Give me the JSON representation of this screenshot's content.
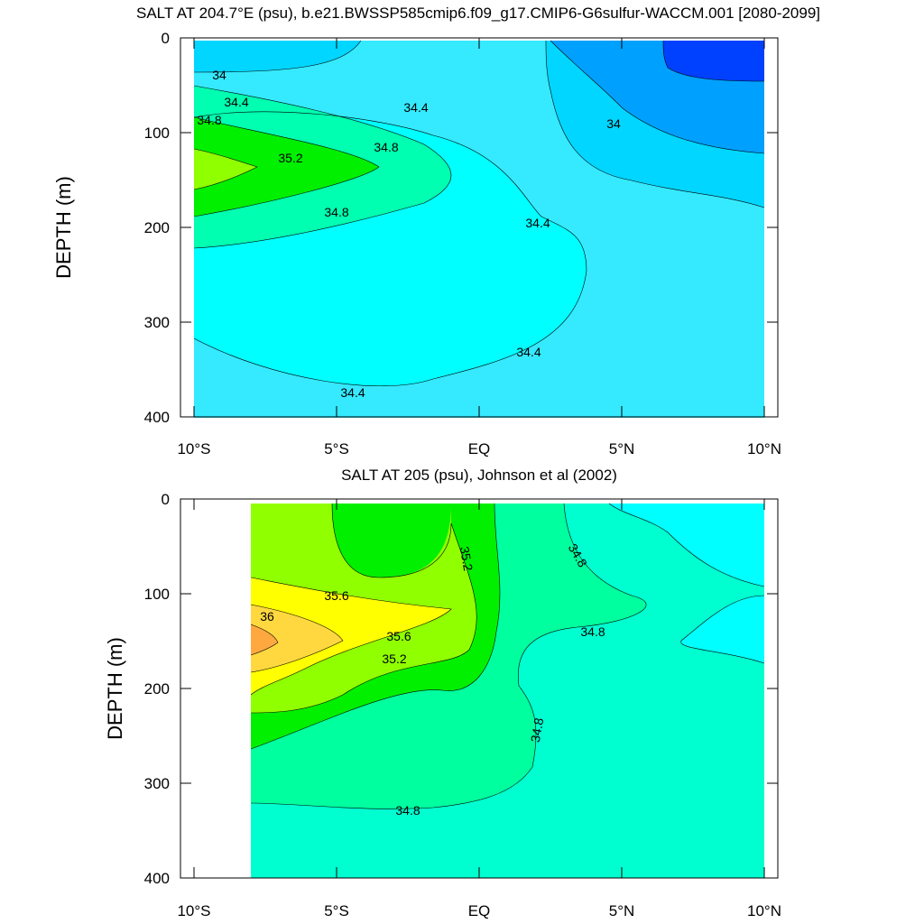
{
  "chart_data": [
    {
      "type": "contour",
      "title": "SALT AT 204.7°E (psu), b.e21.BWSSP585cmip6.f09_g17.CMIP6-G6sulfur-WACCM.001 [2080-2099]",
      "ylabel": "DEPTH (m)",
      "xlabel": "",
      "x_ticks": [
        "10°S",
        "5°S",
        "EQ",
        "5°N",
        "10°N"
      ],
      "xlim": [
        -10,
        10
      ],
      "y_ticks": [
        "0",
        "100",
        "200",
        "300",
        "400"
      ],
      "ylim": [
        0,
        400
      ],
      "y_reversed": true,
      "contour_levels": [
        33.6,
        34.0,
        34.4,
        34.8,
        35.2,
        35.6
      ],
      "contour_labels": [
        "34",
        "34.4",
        "34.8",
        "34.8",
        "35.2",
        "34.4",
        "34",
        "34.8",
        "34.4",
        "34.4",
        "34.4"
      ],
      "colors": {
        "below_33.6": "#0040ff",
        "33.6_34.0": "#00a0ff",
        "34.0_34.4": "#00d6ff",
        "34.4_34.8": "#35e9ff",
        "34.4_34.8_core": "#00ffff",
        "34.8_35.2": "#00ffb0",
        "35.2_35.6": "#00f000",
        "35.6_36.0": "#90ff00"
      }
    },
    {
      "type": "contour",
      "title": "SALT AT 205 (psu), Johnson et al (2002)",
      "ylabel": "DEPTH (m)",
      "xlabel": "",
      "x_ticks": [
        "10°S",
        "5°S",
        "EQ",
        "5°N",
        "10°N"
      ],
      "xlim": [
        -10,
        10
      ],
      "y_ticks": [
        "0",
        "100",
        "200",
        "300",
        "400"
      ],
      "ylim": [
        0,
        400
      ],
      "y_reversed": true,
      "data_x_range": [
        -8,
        10
      ],
      "contour_levels": [
        34.4,
        34.8,
        35.2,
        35.6,
        36.0,
        36.4
      ],
      "contour_labels": [
        "35.2",
        "35.6",
        "36",
        "35.6",
        "35.2",
        "34.8",
        "34.8",
        "34.8",
        "34.8"
      ],
      "colors": {
        "34.4_34.8": "#00ffff",
        "34.8_35.2": "#00ffd0",
        "35.2_35.6": "#00ff9e",
        "35.6_36.0": "#00f000",
        "36.0_36.4": "#90ff00",
        "36.4_36.8": "#ffff00",
        "36.8_37.2": "#ffd840",
        "above_37.2": "#ffa840"
      }
    }
  ]
}
